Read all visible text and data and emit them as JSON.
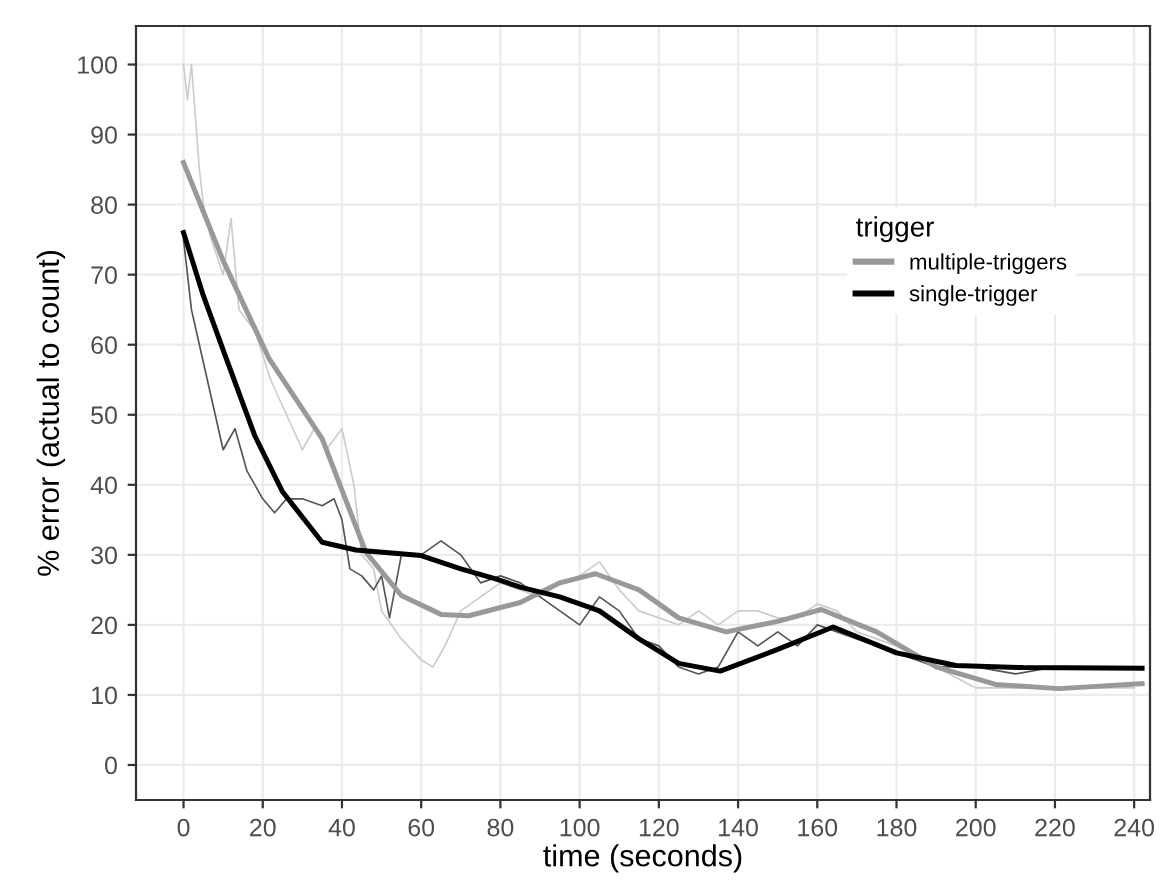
{
  "chart_data": {
    "type": "line",
    "xlabel": "time (seconds)",
    "ylabel": "% error (actual to count)",
    "legend_title": "trigger",
    "legend": "right",
    "grid": true,
    "marker": "none",
    "line_style": "solid",
    "xlim": [
      -12,
      244
    ],
    "ylim": [
      -5,
      105.5
    ],
    "xticks": [
      0,
      20,
      40,
      60,
      80,
      100,
      120,
      140,
      160,
      180,
      200,
      220,
      240
    ],
    "yticks": [
      0,
      10,
      20,
      30,
      40,
      50,
      60,
      70,
      80,
      90,
      100
    ],
    "series": [
      {
        "color": "#cccccc",
        "x": [
          0,
          1,
          2,
          4,
          5,
          7,
          10,
          12,
          14,
          18,
          22,
          26,
          30,
          33,
          36,
          40,
          43,
          45,
          48,
          50,
          55,
          60,
          63,
          66,
          70,
          75,
          80,
          85,
          90,
          95,
          100,
          105,
          110,
          115,
          120,
          125,
          130,
          135,
          140,
          145,
          150,
          155,
          160,
          165,
          170,
          175,
          180,
          190,
          200,
          210,
          220,
          230,
          240
        ],
        "values": [
          100,
          95,
          100,
          85,
          80,
          75,
          70,
          78,
          65,
          62,
          55,
          50,
          45,
          48,
          45,
          48,
          40,
          30,
          28,
          22,
          18,
          15,
          14,
          17,
          22,
          24,
          26,
          25,
          24,
          26,
          27,
          29,
          25,
          22,
          21,
          20,
          22,
          20,
          22,
          22,
          21,
          21,
          23,
          22,
          19,
          18,
          17,
          14,
          11,
          11,
          11,
          11,
          11
        ]
      },
      {
        "color": "#555555",
        "x": [
          0,
          2,
          4,
          6,
          8,
          10,
          13,
          16,
          20,
          23,
          26,
          30,
          35,
          38,
          40,
          42,
          45,
          48,
          50,
          52,
          55,
          60,
          65,
          70,
          75,
          80,
          85,
          90,
          95,
          100,
          105,
          110,
          115,
          120,
          125,
          130,
          135,
          140,
          145,
          150,
          155,
          160,
          165,
          170,
          180,
          190,
          200,
          210,
          220,
          230,
          240
        ],
        "values": [
          75,
          65,
          60,
          55,
          50,
          45,
          48,
          42,
          38,
          36,
          38,
          38,
          37,
          38,
          35,
          28,
          27,
          25,
          27,
          21,
          30,
          30,
          32,
          30,
          26,
          27,
          26,
          24,
          22,
          20,
          24,
          22,
          18,
          17,
          14,
          13,
          14,
          19,
          17,
          19,
          17,
          20,
          19,
          18,
          16,
          14,
          14,
          13,
          14,
          14,
          14
        ]
      },
      {
        "name": "multiple-triggers",
        "color": "#999999",
        "x": [
          0,
          10,
          21.6,
          35,
          46,
          55,
          65,
          72,
          85,
          95,
          104,
          115,
          125,
          137,
          150,
          161,
          175,
          190,
          205,
          221,
          242
        ],
        "values": [
          86,
          72,
          58,
          46.6,
          30.4,
          24.2,
          21.5,
          21.3,
          23.2,
          26,
          27.3,
          25,
          21,
          19,
          20.5,
          22.2,
          19,
          14,
          11.5,
          10.9,
          11.6
        ]
      },
      {
        "name": "single-trigger",
        "color": "#000000",
        "x": [
          0,
          5,
          10.8,
          18,
          25,
          35,
          43.5,
          60,
          70,
          78.6,
          85,
          95,
          105,
          115,
          125,
          135.5,
          150,
          164,
          180,
          195,
          212,
          242
        ],
        "values": [
          76,
          67,
          58,
          47,
          39,
          31.8,
          30.7,
          29.9,
          28,
          26.6,
          25.4,
          24,
          22,
          18,
          14.5,
          13.4,
          16.5,
          19.7,
          16,
          14.2,
          13.9,
          13.8
        ]
      }
    ]
  }
}
